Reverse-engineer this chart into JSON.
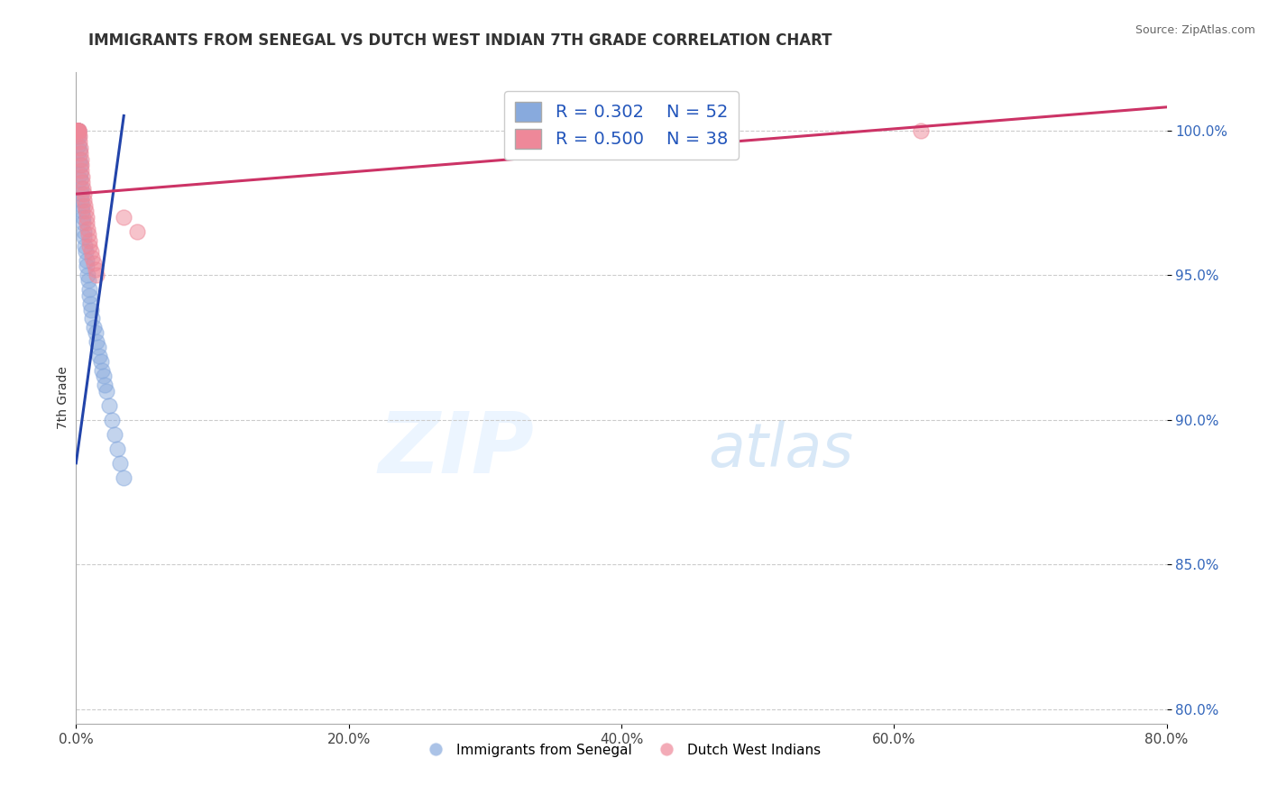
{
  "title": "IMMIGRANTS FROM SENEGAL VS DUTCH WEST INDIAN 7TH GRADE CORRELATION CHART",
  "source": "Source: ZipAtlas.com",
  "xlabel_ticks": [
    "0.0%",
    "20.0%",
    "40.0%",
    "60.0%",
    "80.0%"
  ],
  "xlabel_vals": [
    0.0,
    20.0,
    40.0,
    60.0,
    80.0
  ],
  "ylabel_ticks": [
    "80.0%",
    "85.0%",
    "90.0%",
    "95.0%",
    "100.0%"
  ],
  "ylabel_vals": [
    80.0,
    85.0,
    90.0,
    95.0,
    100.0
  ],
  "xmin": 0.0,
  "xmax": 80.0,
  "ymin": 79.5,
  "ymax": 102.0,
  "ylabel": "7th Grade",
  "watermark_zip": "ZIP",
  "watermark_atlas": "atlas",
  "legend_R1": "R = 0.302",
  "legend_N1": "N = 52",
  "legend_R2": "R = 0.500",
  "legend_N2": "N = 38",
  "color_blue": "#88AADD",
  "color_pink": "#EE8899",
  "trendline_blue": "#2244AA",
  "trendline_pink": "#CC3366",
  "blue_trendline_x0": 0.0,
  "blue_trendline_y0": 88.5,
  "blue_trendline_x1": 3.5,
  "blue_trendline_y1": 100.5,
  "pink_trendline_x0": 0.0,
  "pink_trendline_y0": 97.8,
  "pink_trendline_x1": 80.0,
  "pink_trendline_y1": 100.8,
  "blue_x": [
    0.05,
    0.08,
    0.1,
    0.12,
    0.15,
    0.18,
    0.2,
    0.22,
    0.25,
    0.28,
    0.3,
    0.32,
    0.35,
    0.38,
    0.4,
    0.42,
    0.45,
    0.48,
    0.5,
    0.55,
    0.6,
    0.65,
    0.7,
    0.75,
    0.8,
    0.85,
    0.9,
    0.95,
    1.0,
    1.05,
    1.1,
    1.2,
    1.3,
    1.4,
    1.5,
    1.6,
    1.7,
    1.8,
    1.9,
    2.0,
    2.1,
    2.2,
    2.4,
    2.6,
    2.8,
    3.0,
    3.2,
    3.5,
    0.06,
    0.09,
    0.11,
    0.14
  ],
  "blue_y": [
    100.0,
    100.0,
    100.0,
    100.0,
    100.0,
    99.8,
    99.5,
    99.3,
    99.0,
    98.8,
    98.5,
    98.3,
    98.0,
    97.8,
    97.6,
    97.4,
    97.2,
    97.0,
    96.8,
    96.5,
    96.3,
    96.0,
    95.8,
    95.5,
    95.3,
    95.0,
    94.8,
    94.5,
    94.3,
    94.0,
    93.8,
    93.5,
    93.2,
    93.0,
    92.7,
    92.5,
    92.2,
    92.0,
    91.7,
    91.5,
    91.2,
    91.0,
    90.5,
    90.0,
    89.5,
    89.0,
    88.5,
    88.0,
    100.0,
    100.0,
    100.0,
    100.0
  ],
  "pink_x": [
    0.08,
    0.12,
    0.15,
    0.18,
    0.2,
    0.22,
    0.25,
    0.28,
    0.3,
    0.35,
    0.38,
    0.4,
    0.42,
    0.45,
    0.5,
    0.55,
    0.6,
    0.65,
    0.7,
    0.75,
    0.8,
    0.85,
    0.9,
    0.95,
    1.0,
    1.1,
    1.2,
    1.3,
    1.4,
    1.5,
    0.1,
    0.16,
    3.5,
    4.5,
    62.0,
    0.06,
    0.09,
    0.13
  ],
  "pink_y": [
    100.0,
    100.0,
    100.0,
    100.0,
    100.0,
    99.8,
    99.6,
    99.4,
    99.2,
    99.0,
    98.8,
    98.6,
    98.4,
    98.2,
    98.0,
    97.8,
    97.6,
    97.4,
    97.2,
    97.0,
    96.8,
    96.6,
    96.4,
    96.2,
    96.0,
    95.8,
    95.6,
    95.4,
    95.2,
    95.0,
    100.0,
    99.9,
    97.0,
    96.5,
    100.0,
    100.0,
    100.0,
    100.0
  ]
}
